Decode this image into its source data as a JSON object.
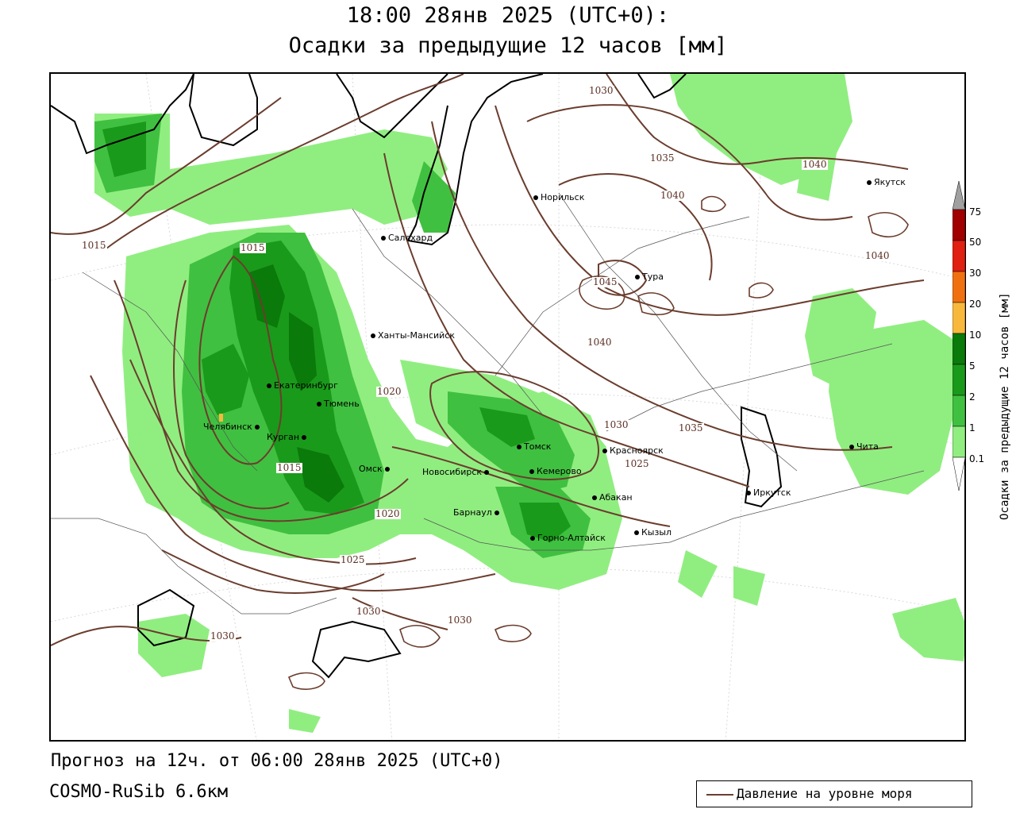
{
  "title": {
    "line1": "18:00 28янв 2025 (UTC+0):",
    "line2": "Осадки за предыдущие 12 часов [мм]"
  },
  "footer": {
    "forecast": "Прогноз на 12ч. от 06:00 28янв 2025 (UTC+0)",
    "model": "COSMO-RuSib 6.6км"
  },
  "legend": {
    "label": "Давление на уровне моря",
    "line_color": "#6b3d2e"
  },
  "colorbar": {
    "title": "Осадки за предыдущие 12 часов [мм]",
    "ticks": [
      "0.1",
      "1",
      "2",
      "5",
      "10",
      "20",
      "30",
      "50",
      "75"
    ],
    "colors": {
      "0.1-1": "#ffffff",
      "1-2": "#90ee80",
      "2-5": "#40c040",
      "5-10": "#1a9a1a",
      "10-20": "#0a7a0a",
      "20-30": "#f8b83c",
      "30-50": "#f07010",
      "50-75": "#e02010",
      "75+": "#a00000",
      "over": "#a0a0a0"
    }
  },
  "cities": [
    {
      "name": "Норильск"
    },
    {
      "name": "Якутск"
    },
    {
      "name": "Салехард"
    },
    {
      "name": "Тура"
    },
    {
      "name": "Ханты-Мансийск"
    },
    {
      "name": "Екатеринбург"
    },
    {
      "name": "Тюмень"
    },
    {
      "name": "Челябинск"
    },
    {
      "name": "Курган"
    },
    {
      "name": "Омск"
    },
    {
      "name": "Томск"
    },
    {
      "name": "Красноярск"
    },
    {
      "name": "Новосибирск"
    },
    {
      "name": "Кемерово"
    },
    {
      "name": "Абакан"
    },
    {
      "name": "Барнаул"
    },
    {
      "name": "Горно-Алтайск"
    },
    {
      "name": "Кызыл"
    },
    {
      "name": "Иркутск"
    },
    {
      "name": "Чита"
    }
  ],
  "isobar_labels": [
    "1030",
    "1035",
    "1040",
    "1040",
    "1040",
    "1015",
    "1015",
    "1045",
    "1040",
    "1020",
    "1030",
    "1035",
    "1025",
    "1015",
    "1020",
    "1025",
    "1030",
    "1030",
    "1030"
  ]
}
